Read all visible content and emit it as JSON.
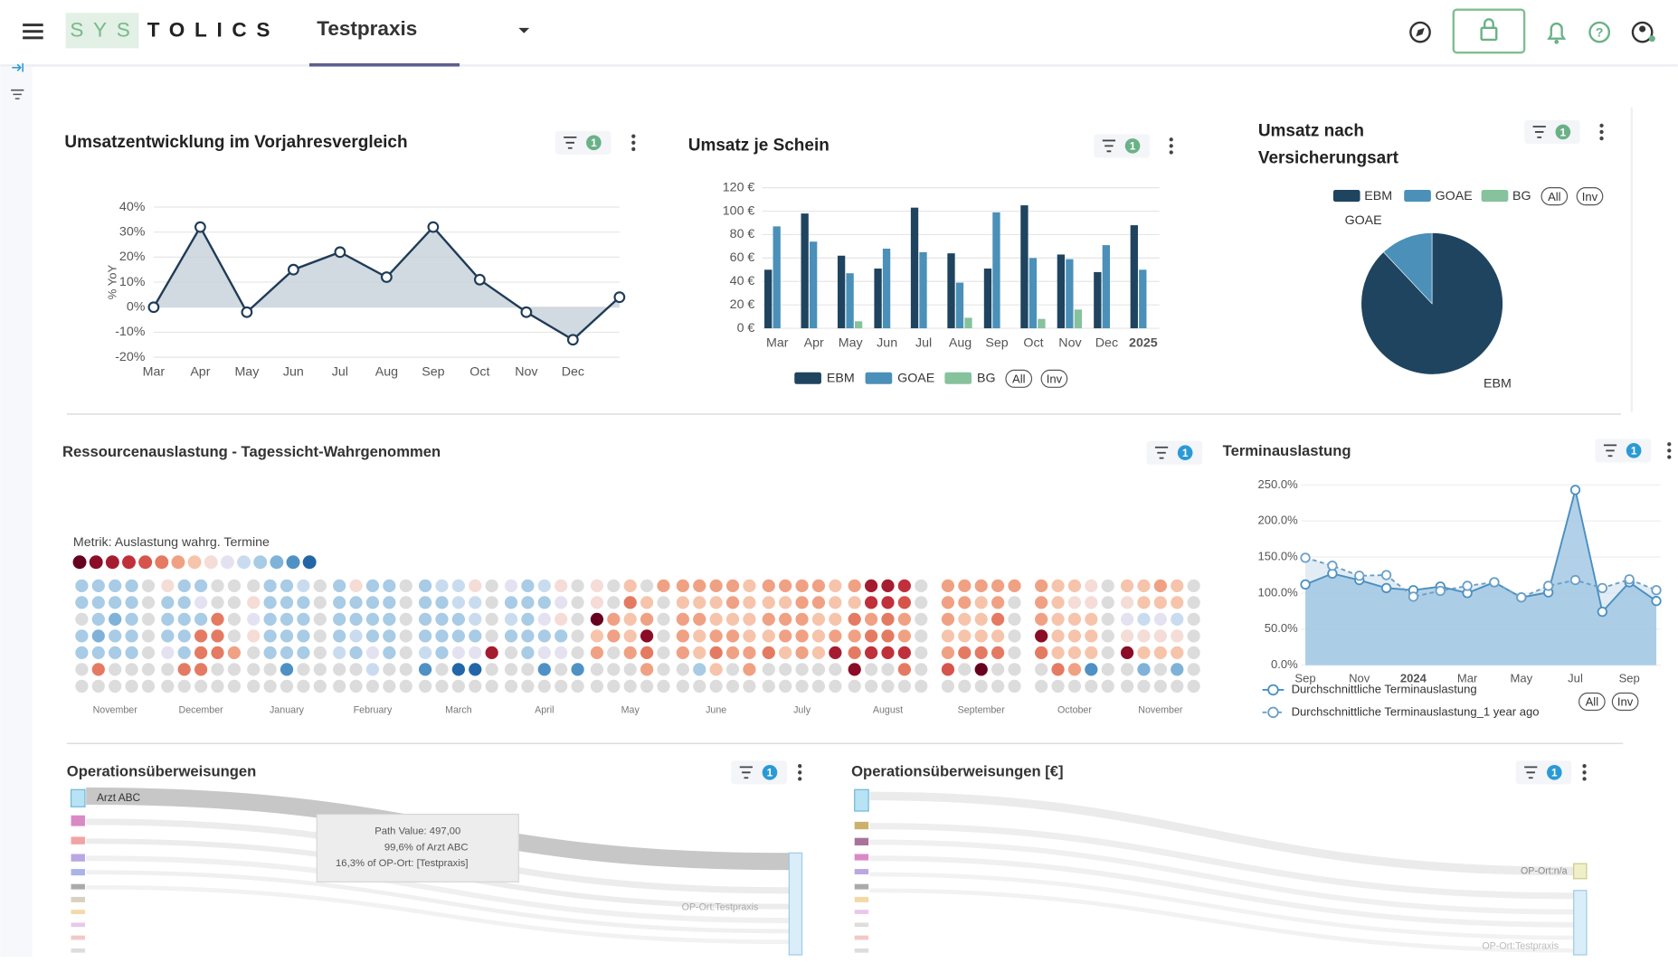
{
  "header": {
    "logo_a": "SYS",
    "logo_b": "TOLICS",
    "practice": "Testpraxis"
  },
  "chart_data": [
    {
      "type": "line",
      "title": "Umsatzentwicklung im Vorjahresvergleich",
      "filter_count": 1,
      "badge_color": "#6ab187",
      "y_label": "% YoY",
      "categories": [
        "Mar",
        "Apr",
        "May",
        "Jun",
        "Jul",
        "Aug",
        "Sep",
        "Oct",
        "Nov",
        "Dec",
        null
      ],
      "values": [
        0,
        32,
        -2,
        15,
        22,
        12,
        32,
        11,
        -2,
        -13,
        4
      ],
      "color": "#1f3b57",
      "fill": "#c5d0da",
      "ylim": [
        -20,
        40
      ],
      "yticks": [
        {
          "value": -20,
          "label": "-20%"
        },
        {
          "value": -10,
          "label": "-10%"
        },
        {
          "value": 0,
          "label": "0%"
        },
        {
          "value": 10,
          "label": "10%"
        },
        {
          "value": 20,
          "label": "20%"
        },
        {
          "value": 30,
          "label": "30%"
        },
        {
          "value": 40,
          "label": "40%"
        }
      ],
      "grid": true
    },
    {
      "type": "bar",
      "title": "Umsatz je Schein",
      "filter_count": 1,
      "badge_color": "#6ab187",
      "categories": [
        "Mar",
        "Apr",
        "May",
        "Jun",
        "Jul",
        "Aug",
        "Sep",
        "Oct",
        "Nov",
        "Dec",
        "2025"
      ],
      "series": [
        {
          "name": "EBM",
          "color": "#1f4460",
          "values": [
            50,
            98,
            62,
            51,
            103,
            64,
            51,
            105,
            63,
            48,
            88
          ]
        },
        {
          "name": "GOAE",
          "color": "#4a90b8",
          "values": [
            87,
            74,
            47,
            68,
            65,
            39,
            99,
            60,
            59,
            71,
            50
          ]
        },
        {
          "name": "BG",
          "color": "#86c29c",
          "values": [
            0,
            0,
            6,
            0,
            0,
            9,
            0,
            8,
            16,
            0,
            0
          ]
        }
      ],
      "ylim": [
        0,
        120
      ],
      "yticks": [
        {
          "value": 0,
          "label": "0 €"
        },
        {
          "value": 20,
          "label": "20 €"
        },
        {
          "value": 40,
          "label": "40 €"
        },
        {
          "value": 60,
          "label": "60 €"
        },
        {
          "value": 80,
          "label": "80 €"
        },
        {
          "value": 100,
          "label": "100 €"
        },
        {
          "value": 120,
          "label": "120 €"
        }
      ],
      "grid": true,
      "buttons": [
        "All",
        "Inv"
      ]
    },
    {
      "type": "pie",
      "title": "Umsatz nach Versicherungsart",
      "filter_count": 1,
      "badge_color": "#6ab187",
      "labels": [
        "EBM",
        "GOAE",
        "BG"
      ],
      "values": [
        88,
        12,
        0
      ],
      "colors": [
        "#1f4460",
        "#4a90b8",
        "#86c29c"
      ],
      "buttons": [
        "All",
        "Inv"
      ]
    },
    {
      "type": "dotmatrix",
      "title": "Ressourcenauslastung - Tagessicht-Wahrgenommen",
      "filter_count": 1,
      "badge_color": "#2a9ad6",
      "metric": "Metrik: Auslastung wahrg. Termine",
      "scale_colors": [
        "#67001f",
        "#8a0c26",
        "#a51c30",
        "#c0303a",
        "#d6544c",
        "#e57a62",
        "#f0a184",
        "#f6c4ab",
        "#f5dcd6",
        "#e4e2f1",
        "#c9dcef",
        "#a8cbe6",
        "#7fb2d9",
        "#4f91c4",
        "#2366a8"
      ],
      "null_color": "#dcdcdc",
      "months": [
        "November",
        "December",
        "January",
        "February",
        "March",
        "April",
        "May",
        "June",
        "July",
        "August",
        "September",
        "October",
        "November"
      ],
      "cells": [
        [
          11,
          11,
          11,
          11,
          null,
          11,
          11,
          11,
          11,
          null,
          null,
          11,
          12,
          11,
          null,
          11,
          12,
          11,
          11,
          null,
          11,
          11,
          11,
          11,
          null,
          null,
          5,
          null,
          null,
          null,
          null,
          null,
          null,
          null,
          null
        ],
        [
          8,
          11,
          11,
          null,
          null,
          11,
          11,
          9,
          null,
          null,
          11,
          11,
          11,
          5,
          null,
          11,
          11,
          5,
          5,
          null,
          9,
          11,
          5,
          5,
          6,
          null,
          5,
          5,
          null,
          null,
          null,
          null,
          null,
          null,
          null
        ],
        [
          null,
          11,
          11,
          10,
          null,
          8,
          11,
          11,
          11,
          null,
          9,
          11,
          11,
          11,
          null,
          8,
          11,
          11,
          11,
          null,
          null,
          11,
          11,
          11,
          null,
          null,
          null,
          13,
          null,
          null,
          null,
          null,
          null,
          null,
          null
        ],
        [
          11,
          8,
          11,
          11,
          null,
          11,
          11,
          11,
          11,
          null,
          11,
          11,
          11,
          11,
          null,
          11,
          10,
          11,
          11,
          null,
          10,
          11,
          9,
          11,
          null,
          null,
          null,
          10,
          null,
          null,
          null,
          null,
          null,
          null,
          null
        ],
        [
          11,
          10,
          10,
          8,
          null,
          11,
          11,
          10,
          10,
          null,
          11,
          11,
          11,
          10,
          null,
          11,
          11,
          11,
          11,
          null,
          10,
          11,
          9,
          9,
          2,
          13,
          null,
          14,
          14,
          null,
          null,
          null,
          null,
          null,
          null
        ],
        [
          9,
          11,
          10,
          8,
          null,
          11,
          11,
          11,
          9,
          null,
          10,
          11,
          9,
          8,
          null,
          11,
          11,
          11,
          11,
          null,
          null,
          11,
          9,
          9,
          null,
          null,
          null,
          13,
          null,
          13,
          null,
          null,
          null,
          null,
          null
        ],
        [
          8,
          null,
          7,
          null,
          6,
          8,
          null,
          5,
          7,
          null,
          0,
          6,
          7,
          6,
          null,
          7,
          6,
          7,
          1,
          null,
          6,
          null,
          6,
          5,
          null,
          null,
          null,
          null,
          6,
          null,
          null,
          null,
          null,
          null,
          null
        ],
        [
          6,
          6,
          6,
          6,
          7,
          7,
          7,
          7,
          6,
          7,
          6,
          6,
          7,
          7,
          7,
          6,
          7,
          6,
          6,
          7,
          6,
          7,
          5,
          6,
          6,
          null,
          11,
          7,
          null,
          6,
          null,
          null,
          null,
          null,
          null
        ],
        [
          6,
          6,
          6,
          6,
          7,
          7,
          7,
          6,
          6,
          7,
          6,
          6,
          6,
          7,
          7,
          7,
          6,
          6,
          7,
          6,
          5,
          7,
          6,
          7,
          2,
          null,
          null,
          null,
          null,
          null,
          null,
          null,
          null,
          null,
          null
        ],
        [
          6,
          2,
          2,
          3,
          null,
          7,
          3,
          3,
          4,
          null,
          5,
          6,
          5,
          6,
          null,
          6,
          5,
          5,
          6,
          null,
          5,
          3,
          3,
          3,
          null,
          1,
          null,
          null,
          5,
          null,
          null,
          null,
          null,
          null,
          null
        ],
        [
          6,
          6,
          6,
          6,
          6,
          6,
          6,
          7,
          6,
          null,
          6,
          7,
          7,
          5,
          null,
          7,
          7,
          7,
          7,
          null,
          6,
          5,
          5,
          5,
          null,
          4,
          null,
          0,
          null,
          null,
          null,
          null,
          null,
          null,
          null
        ],
        [
          6,
          7,
          7,
          8,
          null,
          6,
          7,
          8,
          8,
          null,
          6,
          7,
          7,
          7,
          null,
          1,
          7,
          7,
          7,
          null,
          5,
          7,
          7,
          7,
          null,
          null,
          5,
          6,
          13,
          null,
          null,
          null,
          null,
          null,
          null
        ],
        [
          7,
          7,
          6,
          7,
          null,
          8,
          7,
          7,
          7,
          null,
          9,
          10,
          9,
          10,
          null,
          8,
          8,
          8,
          8,
          null,
          1,
          7,
          7,
          7,
          null,
          null,
          12,
          null,
          12,
          null,
          null,
          null,
          null,
          null,
          null
        ]
      ]
    },
    {
      "type": "area",
      "title": "Terminauslastung",
      "filter_count": 1,
      "badge_color": "#2a9ad6",
      "categories": [
        "Sep",
        null,
        "Nov",
        null,
        "2024",
        null,
        "Mar",
        null,
        "May",
        null,
        "Jul",
        null,
        "Sep",
        null
      ],
      "series": [
        {
          "name": "Durchschnittliche Terminauslastung",
          "color": "#4a8fc0",
          "values": [
            112,
            127,
            118,
            107,
            104,
            109,
            100,
            115,
            94,
            101,
            243,
            74,
            115,
            89
          ]
        },
        {
          "name": "Durchschnittliche Terminauslastung_1 year ago",
          "color": "#6a9fc7",
          "values": [
            149,
            138,
            124,
            125,
            95,
            103,
            110,
            115,
            94,
            110,
            118,
            107,
            119,
            104
          ]
        }
      ],
      "ylim": [
        0,
        250
      ],
      "yticks": [
        {
          "value": 0,
          "label": "0.0%"
        },
        {
          "value": 50,
          "label": "50.0%"
        },
        {
          "value": 100,
          "label": "100.0%"
        },
        {
          "value": 150,
          "label": "150.0%"
        },
        {
          "value": 200,
          "label": "200.0%"
        },
        {
          "value": 250,
          "label": "250.0%"
        }
      ],
      "grid": true,
      "buttons": [
        "All",
        "Inv"
      ]
    }
  ],
  "sankeys": [
    {
      "title": "Operationsüberweisungen",
      "filter_count": 1,
      "source": "Arzt ABC",
      "target": "OP-Ort:Testpraxis",
      "tooltip": [
        "Path Value: 497,00",
        "99,6% of  Arzt ABC",
        "16,3% of OP-Ort:  [Testpraxis]"
      ]
    },
    {
      "title": "Operationsüberweisungen [€]",
      "filter_count": 1,
      "target_a": "OP-Ort:n/a",
      "target_b": "OP-Ort:Testpraxis"
    }
  ]
}
